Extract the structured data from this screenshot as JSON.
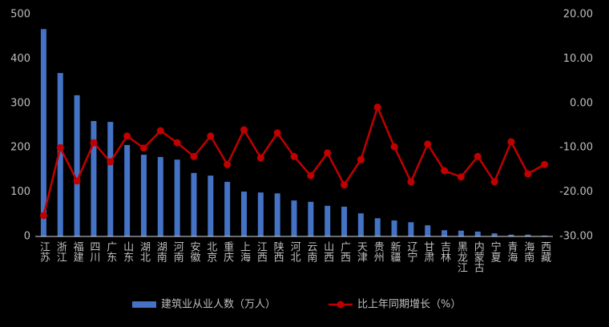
{
  "chart_data": {
    "type": "bar-line",
    "categories": [
      "江苏",
      "浙江",
      "福建",
      "四川",
      "广东",
      "山东",
      "湖北",
      "湖南",
      "河南",
      "安徽",
      "北京",
      "重庆",
      "上海",
      "江西",
      "陕西",
      "河北",
      "云南",
      "山西",
      "广西",
      "天津",
      "贵州",
      "新疆",
      "辽宁",
      "甘肃",
      "吉林",
      "黑龙江",
      "内蒙古",
      "宁夏",
      "青海",
      "海南",
      "西藏"
    ],
    "series": [
      {
        "name": "建筑业从业人数（万人）",
        "color": "#4472c4",
        "type": "bar",
        "values": [
          467,
          368,
          318,
          260,
          258,
          206,
          184,
          179,
          173,
          143,
          137,
          123,
          101,
          99,
          97,
          81,
          78,
          69,
          67,
          52,
          41,
          36,
          32,
          25,
          14,
          13,
          11,
          7,
          4,
          4,
          2
        ]
      },
      {
        "name": "比上年同期增长（%）",
        "color": "#c00000",
        "type": "line",
        "axis": "y2",
        "values": [
          -25.3,
          -10.0,
          -17.5,
          -8.9,
          -13.2,
          -7.4,
          -10.1,
          -6.2,
          -8.9,
          -12.0,
          -7.4,
          -13.8,
          -6.0,
          -12.3,
          -6.7,
          -12.0,
          -16.3,
          -11.2,
          -18.4,
          -12.7,
          -0.9,
          -9.8,
          -17.7,
          -9.2,
          -15.2,
          -16.6,
          -12.0,
          -17.7,
          -8.7,
          -15.9,
          -13.8
        ]
      }
    ],
    "ylim": [
      0,
      500
    ],
    "yticks": [
      0,
      100,
      200,
      300,
      400,
      500
    ],
    "y2lim": [
      -30,
      20
    ],
    "y2ticks": [
      {
        "value": -30,
        "label": "-30.00"
      },
      {
        "value": -20,
        "label": "-20.00"
      },
      {
        "value": -10,
        "label": "-10.00"
      },
      {
        "value": 0,
        "label": "0.00"
      },
      {
        "value": 10,
        "label": "10.00"
      },
      {
        "value": 20,
        "label": "20.00"
      }
    ],
    "grid": false
  }
}
